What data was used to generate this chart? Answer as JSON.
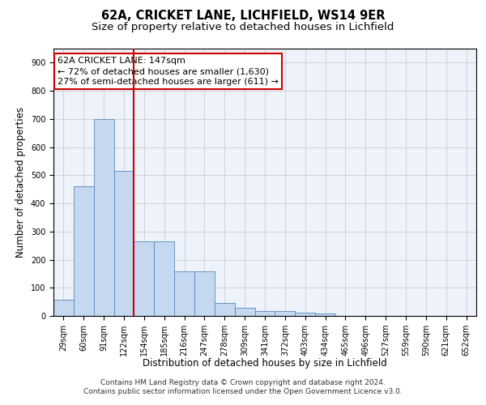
{
  "title_line1": "62A, CRICKET LANE, LICHFIELD, WS14 9ER",
  "title_line2": "Size of property relative to detached houses in Lichfield",
  "xlabel": "Distribution of detached houses by size in Lichfield",
  "ylabel": "Number of detached properties",
  "categories": [
    "29sqm",
    "60sqm",
    "91sqm",
    "122sqm",
    "154sqm",
    "185sqm",
    "216sqm",
    "247sqm",
    "278sqm",
    "309sqm",
    "341sqm",
    "372sqm",
    "403sqm",
    "434sqm",
    "465sqm",
    "496sqm",
    "527sqm",
    "559sqm",
    "590sqm",
    "621sqm",
    "652sqm"
  ],
  "values": [
    57,
    460,
    700,
    515,
    265,
    265,
    157,
    157,
    45,
    30,
    18,
    18,
    12,
    10,
    0,
    0,
    0,
    0,
    0,
    0,
    0
  ],
  "bar_color": "#c5d8f0",
  "bar_edge_color": "#5588bb",
  "vline_x": 4.0,
  "vline_color": "#cc0000",
  "annotation_text": "62A CRICKET LANE: 147sqm\n← 72% of detached houses are smaller (1,630)\n27% of semi-detached houses are larger (611) →",
  "annotation_box_color": "#ffffff",
  "annotation_box_edge": "#cc0000",
  "ylim": [
    0,
    950
  ],
  "yticks": [
    0,
    100,
    200,
    300,
    400,
    500,
    600,
    700,
    800,
    900
  ],
  "grid_color": "#cccccc",
  "bg_color": "#eef2fb",
  "footer_line1": "Contains HM Land Registry data © Crown copyright and database right 2024.",
  "footer_line2": "Contains public sector information licensed under the Open Government Licence v3.0.",
  "title_fontsize": 10.5,
  "subtitle_fontsize": 9.5,
  "axis_label_fontsize": 8.5,
  "tick_fontsize": 7,
  "annotation_fontsize": 8,
  "footer_fontsize": 6.5
}
